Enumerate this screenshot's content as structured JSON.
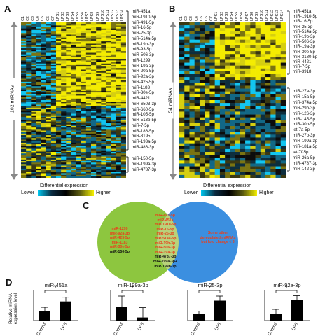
{
  "panels": {
    "a": {
      "letter": "A",
      "columns": [
        "C1",
        "C2",
        "C3",
        "C4",
        "C5",
        "C6",
        "C7",
        "LPS1",
        "LPS2",
        "LPS3",
        "LPS4",
        "LPS5",
        "LPS6",
        "LPS7",
        "LPS8",
        "LPS9",
        "LPS10",
        "LPS11",
        "LPS12",
        "LPS13",
        "LPS14"
      ],
      "side_label": "102 miRNAs",
      "mirnas_top": [
        "miR-451a",
        "miR-1910-5p",
        "miR-491-5p",
        "miR-16-5p",
        "miR-25-3p",
        "miR-514a-5p",
        "miR-19b-3p",
        "miR-93-5p",
        "miR-506-3p",
        "miR-1299",
        "miR-19a-3p",
        "miR-20a-5p",
        "miR-92a-3p",
        "miR-425-5p",
        "miR-1183",
        "miR-30e-5p",
        "miR-4421",
        "miR-6503-3p",
        "miR-660-5p",
        "miR-105-5p",
        "miR-513b-5p",
        "miR-7-5p",
        "miR-186-5p",
        "miR-3195",
        "miR-193a-5p",
        "miR-486-3p"
      ],
      "mirnas_bottom": [
        "miR-150-5p",
        "miR-199a-3p",
        "miR-4787-3p"
      ],
      "legend": {
        "title": "Differential expression",
        "low": "Lower",
        "high": "Higher"
      }
    },
    "b": {
      "letter": "B",
      "columns": [
        "C1",
        "C2",
        "C3",
        "C4",
        "C5",
        "C6",
        "C7",
        "LPS1",
        "LPS2",
        "LPS3",
        "LPS4",
        "LPS5",
        "LPS6",
        "LPS7",
        "LPS8",
        "LPS9",
        "LPS10",
        "LPS11",
        "LPS12",
        "LPS13",
        "LPS14"
      ],
      "side_label": "54 miRNAs",
      "mirnas_top": [
        "miR-451a",
        "miR-1910-5p",
        "miR-16-5p",
        "miR-25-3p",
        "miR-514a-5p",
        "miR-19b-3p",
        "miR-506-3p",
        "miR-19a-3p",
        "miR-30e-5p",
        "miR-3180-5p",
        "miR-4421",
        "miR-7-5p",
        "miR-3918"
      ],
      "mirnas_bottom": [
        "miR-27a-3p",
        "miR-15a-5p",
        "miR-374a-5p",
        "miR-29b-3p",
        "miR-126-3p",
        "miR-145-5p",
        "miR-30b-5p",
        "let-7a-5p",
        "miR-27b-3p",
        "miR-199a-3p",
        "miR-181a-5p",
        "let-7f-5p",
        "miR-26a-5p",
        "miR-4787-3p",
        "miR-142-3p"
      ],
      "legend": {
        "title": "Differential expression",
        "low": "Lower",
        "high": "Higher"
      }
    },
    "c": {
      "letter": "C",
      "left_only": [
        "miR-1299",
        "miR-92a-3p",
        "miR-425-5p",
        "miR-1183",
        "miR-30e-5p",
        "miR-150-5p"
      ],
      "overlap": [
        "miR-491-5p",
        "miR-451a",
        "miR-1910-5p",
        "miR-16-5p",
        "miR-25-3p",
        "miR-514a-5p",
        "miR-19b-3p",
        "miR-506-3p",
        "miR-19a-3p",
        "miR-4787-3p",
        "miR-199a-3p+",
        "miR-199b-3p"
      ],
      "right_only": [
        "Some other",
        "deregulated miRNAs",
        "but fold change < 3"
      ],
      "colors": {
        "left": "#8dc63f",
        "right": "#3b8fe0",
        "overlap": "#b9d27a",
        "red": "#e8401c",
        "black": "#111111"
      }
    },
    "d": {
      "letter": "D",
      "ylabel": [
        "Relative miRNA",
        "expression level"
      ],
      "sig_mark": "*",
      "chart_data": [
        {
          "type": "bar",
          "title": "miR-451a",
          "categories": [
            "Control",
            "LPS"
          ],
          "values": [
            1.0,
            2.05
          ],
          "errors": [
            0.42,
            0.45
          ],
          "ylim": [
            0,
            3
          ]
        },
        {
          "type": "bar",
          "title": "miR-199a-3p",
          "categories": [
            "Control",
            "LPS"
          ],
          "values": [
            1.0,
            0.22
          ],
          "errors": [
            0.75,
            0.7
          ],
          "ylim": [
            0,
            2
          ]
        },
        {
          "type": "bar",
          "title": "miR-25-3p",
          "categories": [
            "Control",
            "LPS"
          ],
          "values": [
            1.0,
            2.85
          ],
          "errors": [
            0.35,
            0.65
          ],
          "ylim": [
            0,
            4
          ]
        },
        {
          "type": "bar",
          "title": "miR-92a-3p",
          "categories": [
            "Control",
            "LPS"
          ],
          "values": [
            1.0,
            2.9
          ],
          "errors": [
            0.6,
            0.65
          ],
          "ylim": [
            0,
            4
          ]
        }
      ]
    }
  }
}
